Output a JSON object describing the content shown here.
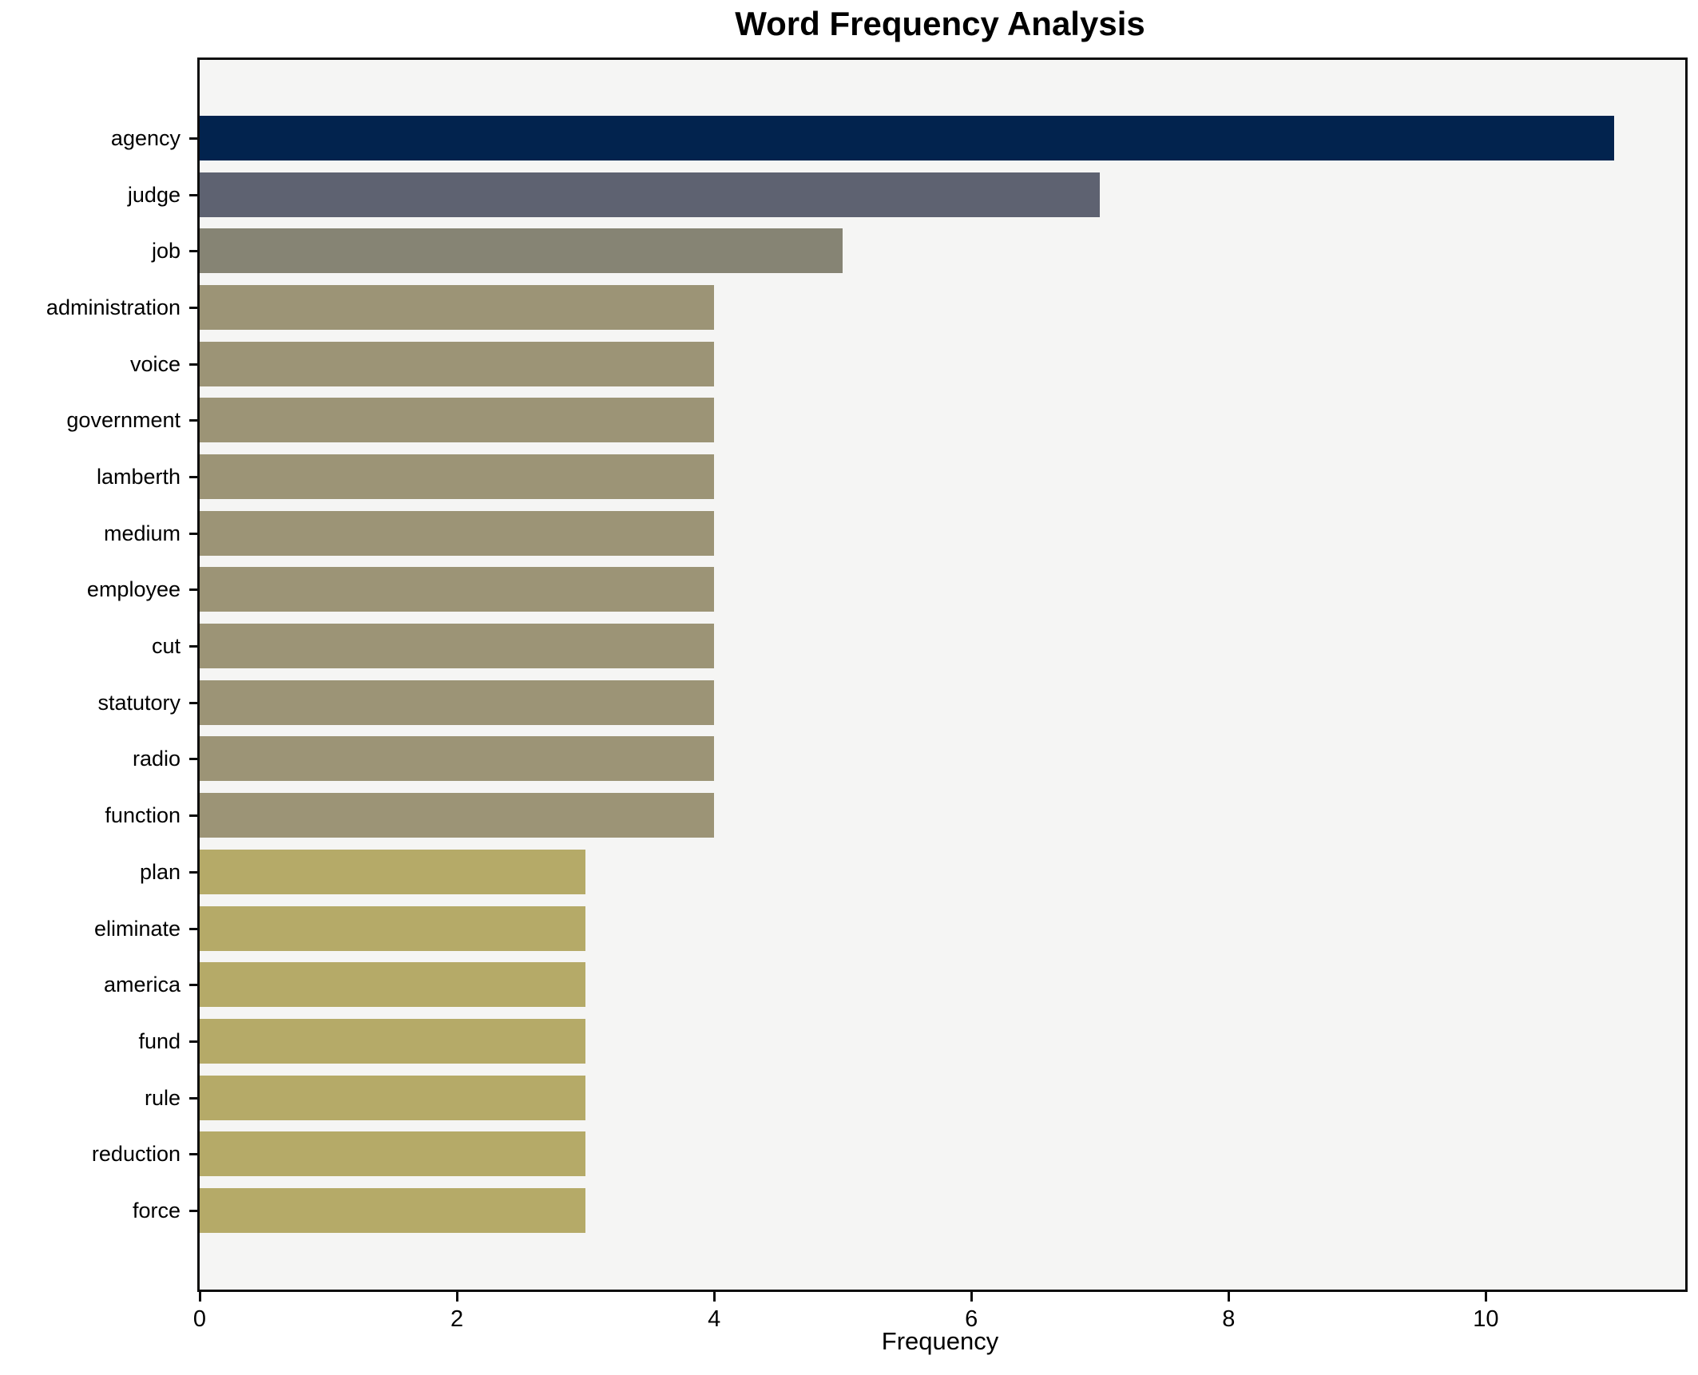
{
  "title": "Word Frequency Analysis",
  "chart_data": {
    "type": "bar",
    "orientation": "horizontal",
    "title": "Word Frequency Analysis",
    "xlabel": "Frequency",
    "ylabel": "",
    "categories": [
      "agency",
      "judge",
      "job",
      "administration",
      "voice",
      "government",
      "lamberth",
      "medium",
      "employee",
      "cut",
      "statutory",
      "radio",
      "function",
      "plan",
      "eliminate",
      "america",
      "fund",
      "rule",
      "reduction",
      "force"
    ],
    "values": [
      11,
      7,
      5,
      4,
      4,
      4,
      4,
      4,
      4,
      4,
      4,
      4,
      4,
      3,
      3,
      3,
      3,
      3,
      3,
      3
    ],
    "bar_colors": [
      "#02234e",
      "#5e6271",
      "#868474",
      "#9c9476",
      "#9c9476",
      "#9c9476",
      "#9c9476",
      "#9c9476",
      "#9c9476",
      "#9c9476",
      "#9c9476",
      "#9c9476",
      "#9c9476",
      "#b5aa68",
      "#b5aa68",
      "#b5aa68",
      "#b5aa68",
      "#b5aa68",
      "#b5aa68",
      "#b5aa68"
    ],
    "xlim": [
      0,
      11.55
    ],
    "xticks": [
      0,
      2,
      4,
      6,
      8,
      10
    ],
    "grid": false,
    "legend": null,
    "plot_bg": "#f5f5f4",
    "fig_bg": "#ffffff",
    "spine_color": "#0d0d0d"
  }
}
